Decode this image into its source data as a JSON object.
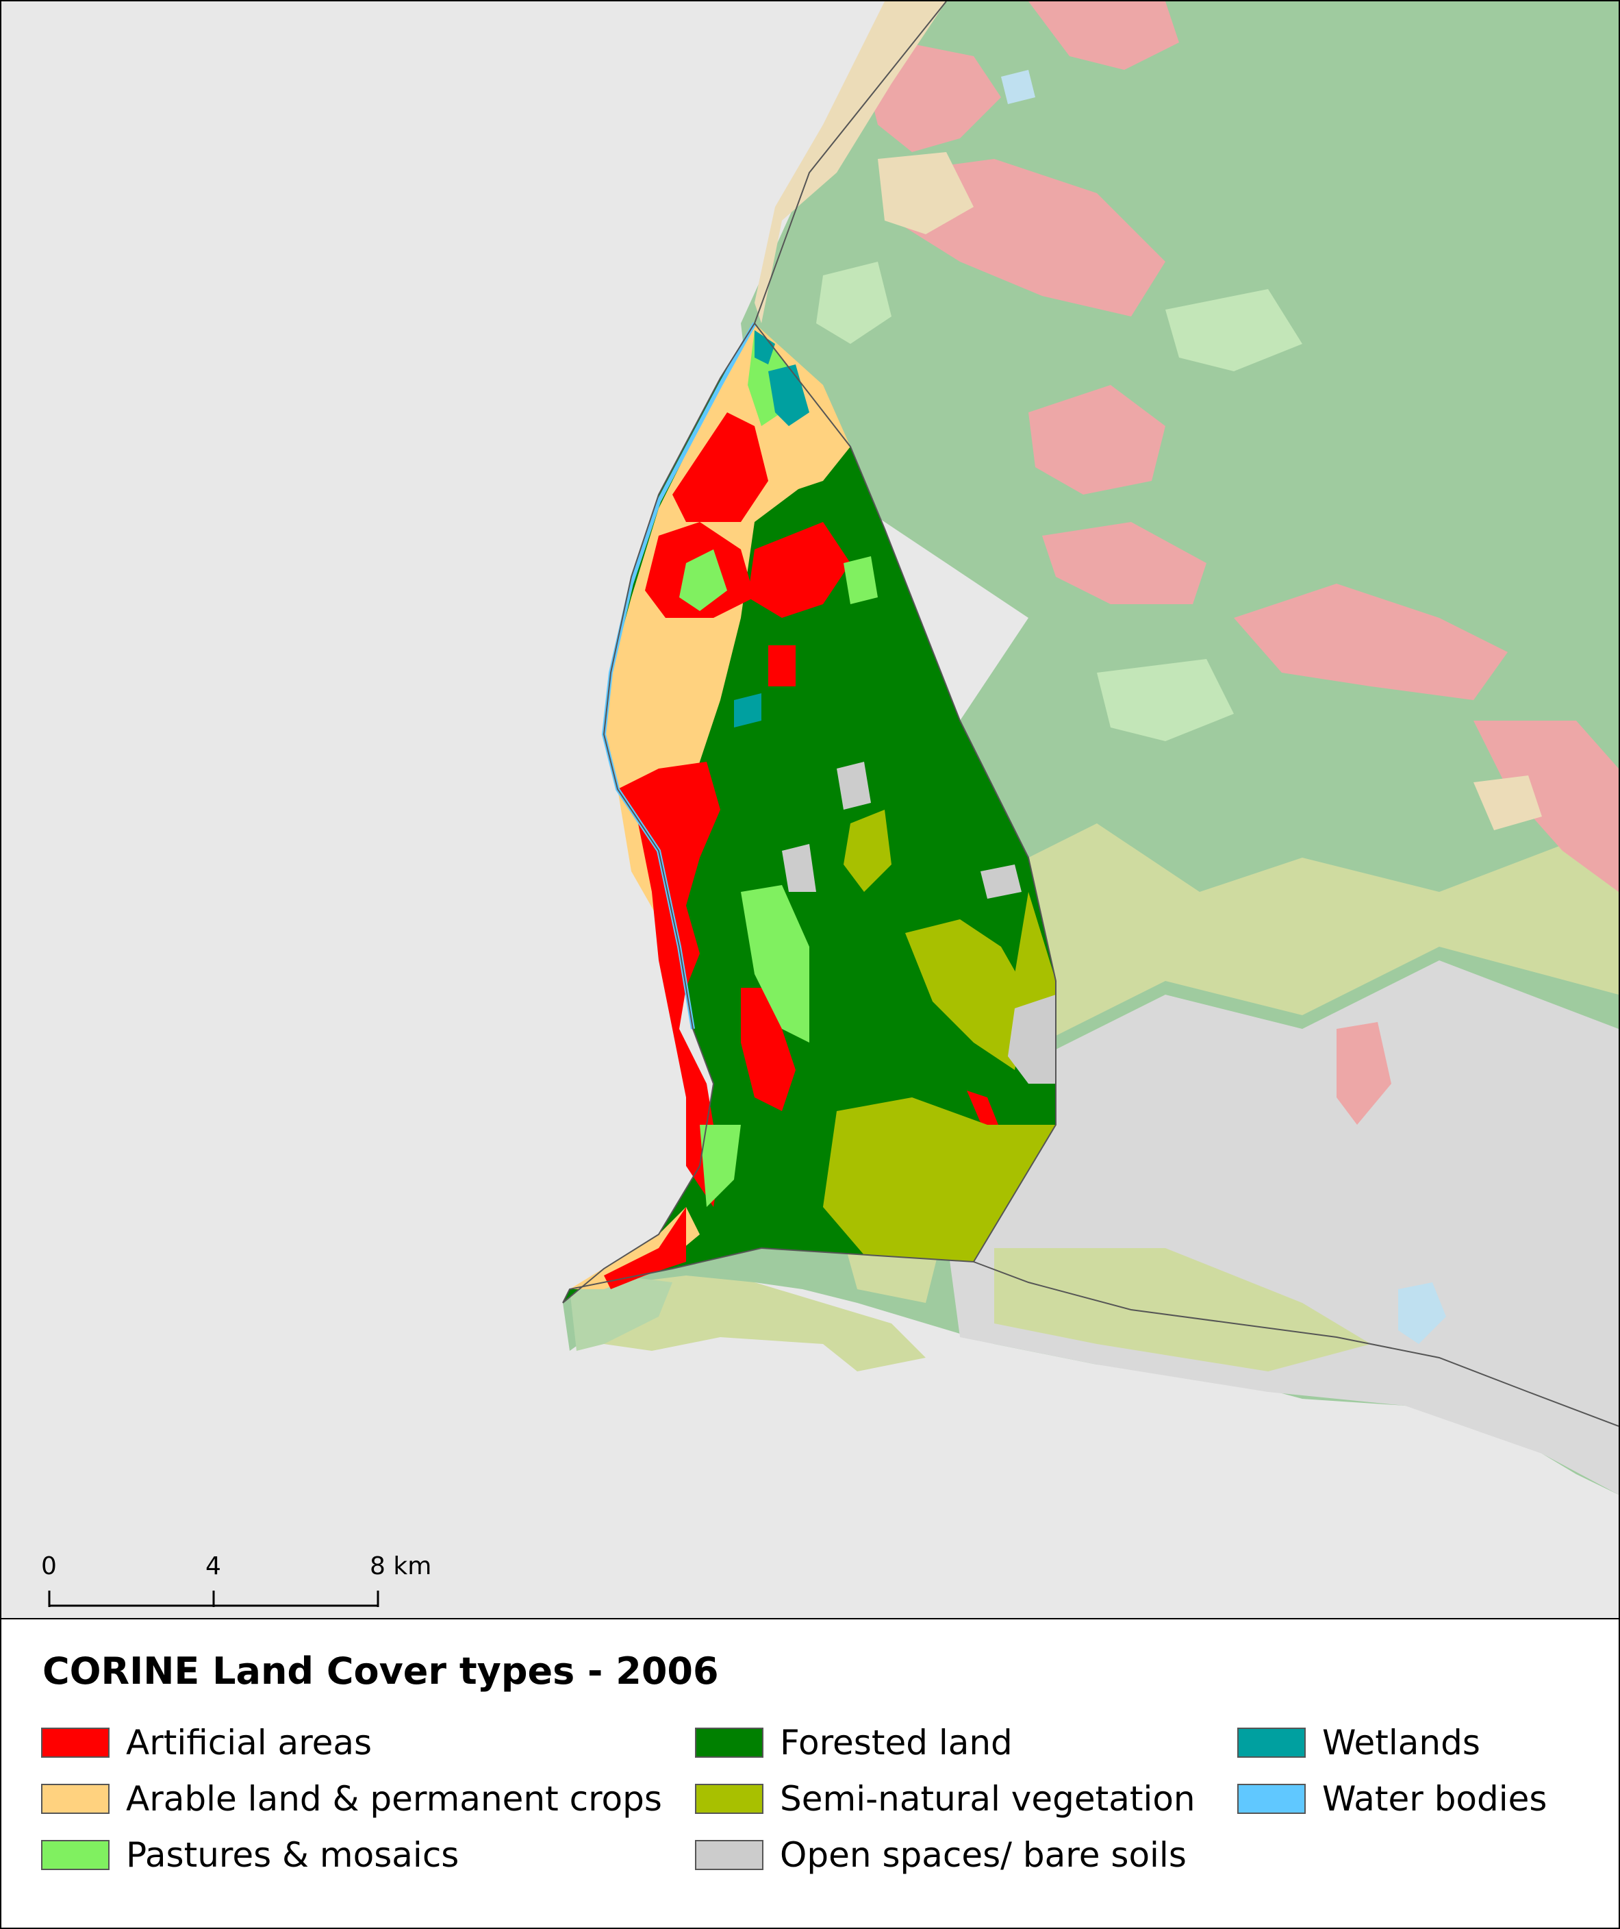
{
  "scale_bar": {
    "ticks": [
      "0",
      "4",
      "8 km"
    ]
  },
  "legend": {
    "title": "CORINE Land Cover types - 2006",
    "items": [
      {
        "label": "Artificial areas",
        "color": "#ff0000"
      },
      {
        "label": "Arable land & permanent crops",
        "color": "#ffd27f"
      },
      {
        "label": "Pastures & mosaics",
        "color": "#80f060"
      },
      {
        "label": "Forested land",
        "color": "#008000"
      },
      {
        "label": "Semi-natural vegetation",
        "color": "#a8c000"
      },
      {
        "label": "Open spaces/ bare soils",
        "color": "#cccccc"
      },
      {
        "label": "Wetlands",
        "color": "#00a0a0"
      },
      {
        "label": "Water bodies",
        "color": "#60c8ff"
      }
    ]
  },
  "colors": {
    "sea": "#e8e8e8",
    "faded_forest": "#9fcb9f",
    "faded_artificial": "#eda7a7",
    "faded_seminatural": "#cfdba0",
    "faded_bare": "#d9d9d9",
    "faded_pasture": "#c3e6b8",
    "faded_arable": "#ecdcb8",
    "boundary": "#555555"
  }
}
